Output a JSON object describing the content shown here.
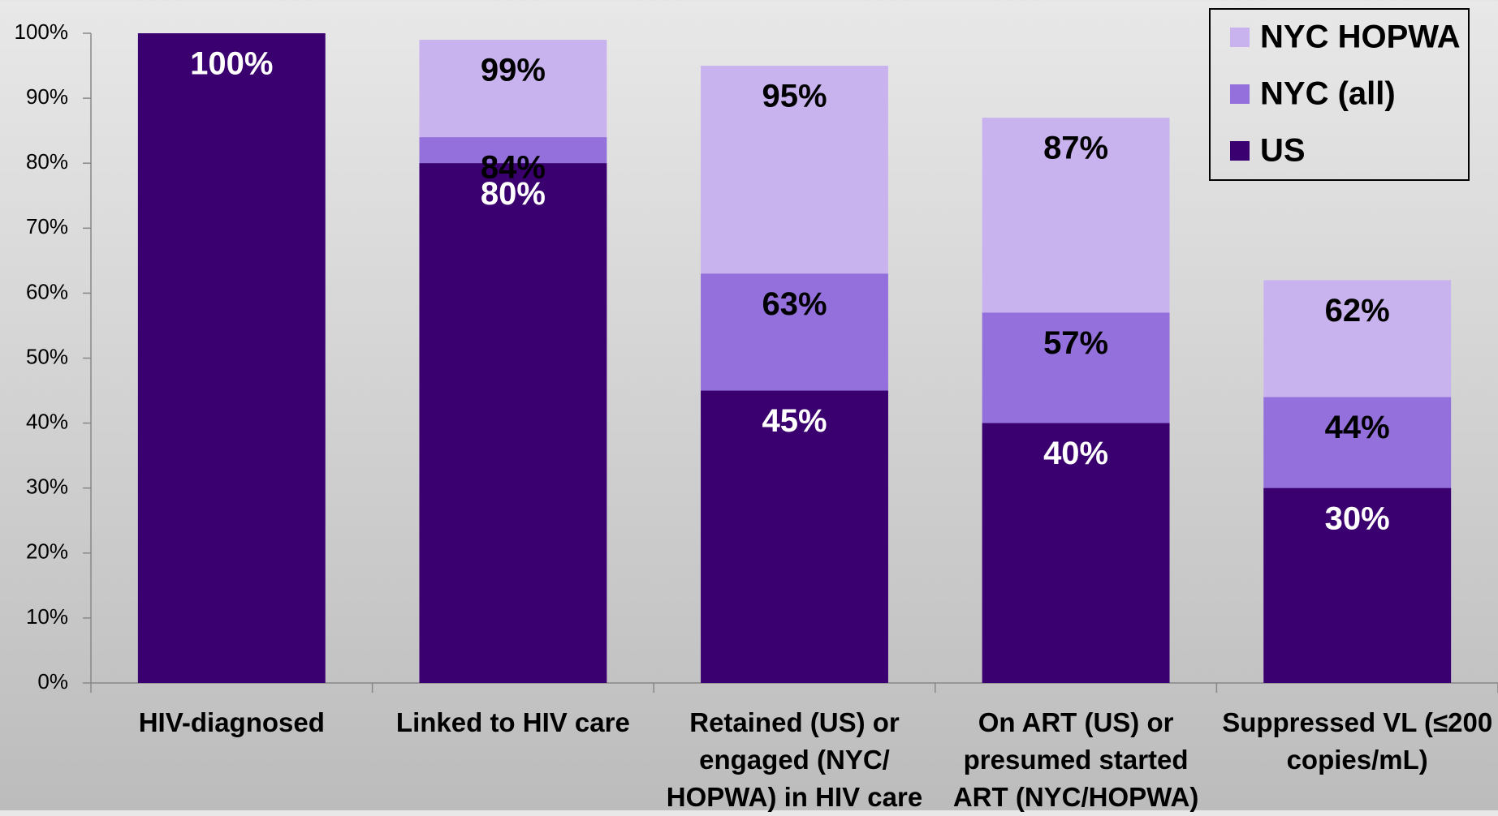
{
  "chart_data": {
    "type": "bar",
    "categories": [
      "HIV-diagnosed",
      "Linked to HIV care",
      "Retained (US) or engaged (NYC/ HOPWA) in HIV care",
      "On ART (US) or presumed started ART (NYC/HOPWA)",
      "Suppressed VL (≤200 copies/mL)"
    ],
    "series": [
      {
        "name": "US",
        "color": "#3b0070",
        "label_color": "#ffffff",
        "values": [
          100,
          80,
          45,
          40,
          30
        ],
        "value_labels": [
          "100%",
          "80%",
          "45%",
          "40%",
          "30%"
        ]
      },
      {
        "name": "NYC (all)",
        "color": "#9370db",
        "label_color": "#000000",
        "values": [
          null,
          84,
          63,
          57,
          44
        ],
        "value_labels": [
          null,
          "84%",
          "63%",
          "57%",
          "44%"
        ]
      },
      {
        "name": "NYC HOPWA",
        "color": "#c9b3ee",
        "label_color": "#000000",
        "values": [
          null,
          99,
          95,
          87,
          62
        ],
        "value_labels": [
          null,
          "99%",
          "95%",
          "87%",
          "62%"
        ]
      }
    ],
    "ylim": [
      0,
      100
    ],
    "yticks": [
      {
        "value": 0,
        "label": "0%"
      },
      {
        "value": 10,
        "label": "10%"
      },
      {
        "value": 20,
        "label": "20%"
      },
      {
        "value": 30,
        "label": "30%"
      },
      {
        "value": 40,
        "label": "40%"
      },
      {
        "value": 50,
        "label": "50%"
      },
      {
        "value": 60,
        "label": "60%"
      },
      {
        "value": 70,
        "label": "70%"
      },
      {
        "value": 80,
        "label": "80%"
      },
      {
        "value": 90,
        "label": "90%"
      },
      {
        "value": 100,
        "label": "100%"
      }
    ],
    "grid": false,
    "legend": "upper right"
  }
}
